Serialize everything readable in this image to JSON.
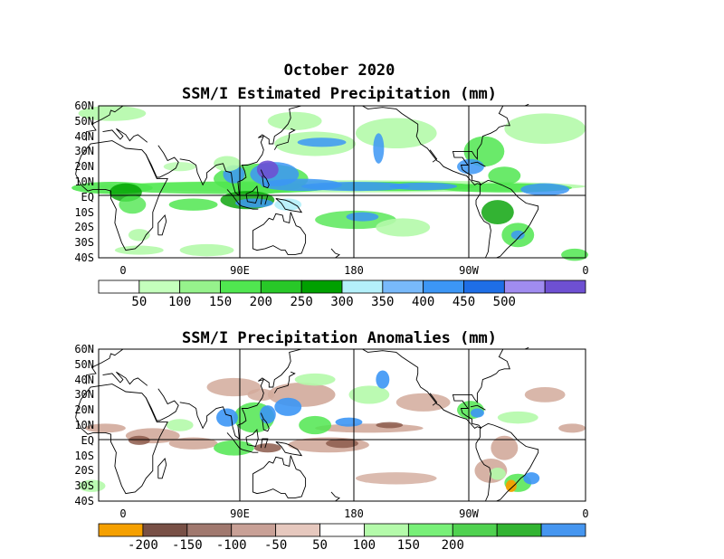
{
  "page_title": "October 2020",
  "top_map": {
    "title": "SSM/I Estimated Precipitation (mm)",
    "lat_labels": [
      "60N",
      "50N",
      "40N",
      "30N",
      "20N",
      "10N",
      "EQ",
      "10S",
      "20S",
      "30S",
      "40S"
    ],
    "lon_labels": [
      "0",
      "90E",
      "180",
      "90W",
      "0"
    ],
    "colorbar": {
      "labels": [
        "50",
        "100",
        "150",
        "200",
        "250",
        "300",
        "350",
        "400",
        "450",
        "500"
      ],
      "colors": [
        "#ffffff",
        "#c4ffbc",
        "#96f28c",
        "#50e650",
        "#28c828",
        "#00a000",
        "#b4f0fa",
        "#78b9fa",
        "#3c96f5",
        "#1e6ee6",
        "#a08cf0",
        "#6e50d2"
      ]
    }
  },
  "bottom_map": {
    "title": "SSM/I Precipitation Anomalies (mm)",
    "lat_labels": [
      "60N",
      "50N",
      "40N",
      "30N",
      "20N",
      "10N",
      "EQ",
      "10S",
      "20S",
      "30S",
      "40S"
    ],
    "lon_labels": [
      "0",
      "90E",
      "180",
      "90W",
      "0"
    ],
    "colorbar": {
      "labels": [
        "-200",
        "-150",
        "-100",
        "-50",
        "50",
        "100",
        "150",
        "200"
      ],
      "colors": [
        "#f5a000",
        "#785046",
        "#a0786e",
        "#c8a096",
        "#e6c8be",
        "#ffffff",
        "#b4faaa",
        "#78f078",
        "#50d250",
        "#32b432",
        "#4696f0"
      ]
    }
  },
  "colors": {
    "green_light": "#b4faaa",
    "green_mid": "#50e650",
    "green_dark": "#00a000",
    "blue_light": "#b4f0fa",
    "blue_mid": "#3c96f5",
    "purple": "#6e50d2",
    "brown_light": "#d2aa9b",
    "brown_dark": "#8c5a4b",
    "orange": "#f5a000"
  }
}
